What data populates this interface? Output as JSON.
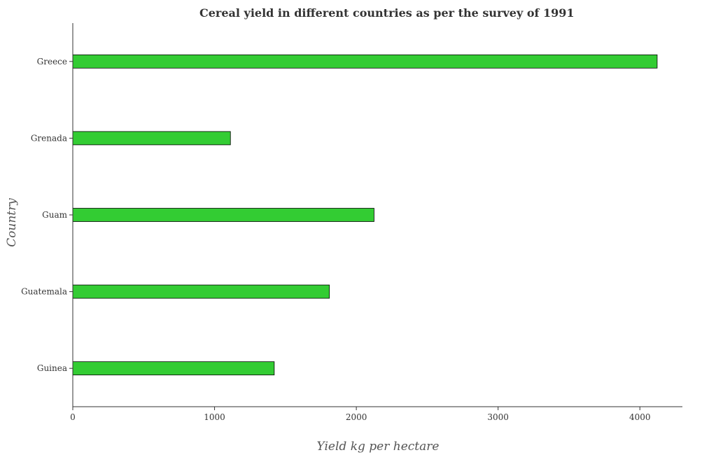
{
  "chart_data": {
    "type": "bar",
    "orientation": "horizontal",
    "title": "Cereal yield in different countries as per the survey of 1991",
    "xlabel": "Yield kg per hectare",
    "ylabel": "Country",
    "categories": [
      "Greece",
      "Grenada",
      "Guam",
      "Guatemala",
      "Guinea"
    ],
    "values": [
      4122,
      1112,
      2125,
      1810,
      1421
    ],
    "xlim": [
      0,
      4300
    ],
    "xticks": [
      0,
      1000,
      2000,
      3000,
      4000
    ],
    "xtick_labels": [
      "0",
      "1000",
      "2000",
      "3000",
      "4000"
    ],
    "bar_color": "#33cc33",
    "grid": false
  }
}
